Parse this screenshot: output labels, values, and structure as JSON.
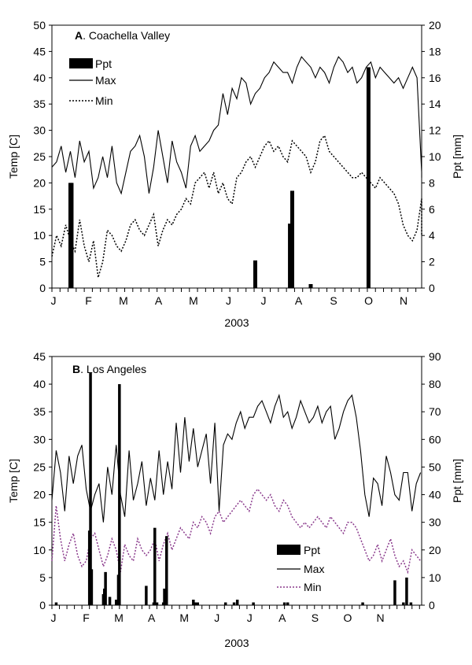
{
  "colors": {
    "max": "#000000",
    "min_a": "#000000",
    "min_b": "#8a3a8c",
    "ppt": "#000000"
  },
  "chart_data": [
    {
      "type": "line",
      "title_letter": "A",
      "title": ". Coachella Valley",
      "xlabel": "2003",
      "ylabel_left": "Temp [C]",
      "ylabel_right": "Ppt [mm]",
      "ylim_left": [
        0,
        50
      ],
      "ylim_right": [
        0,
        20
      ],
      "yticks_left": [
        0,
        5,
        10,
        15,
        20,
        25,
        30,
        35,
        40,
        45,
        50
      ],
      "yticks_right": [
        0,
        2,
        4,
        6,
        8,
        10,
        12,
        14,
        16,
        18,
        20
      ],
      "xlim_days": [
        0,
        320
      ],
      "month_labels": [
        "J",
        "F",
        "M",
        "A",
        "M",
        "J",
        "J",
        "A",
        "S",
        "O",
        "N"
      ],
      "legend": [
        {
          "name": "Ppt",
          "style": "bar"
        },
        {
          "name": "Max",
          "style": "solid"
        },
        {
          "name": "Min",
          "style": "dotted"
        }
      ],
      "legend_position": "top-left",
      "series": [
        {
          "name": "Max",
          "style": "solid",
          "day_step": 4,
          "values": [
            23,
            24,
            27,
            22,
            26,
            21,
            28,
            24,
            26,
            19,
            21,
            25,
            21,
            27,
            20,
            18,
            22,
            26,
            27,
            29,
            25,
            18,
            23,
            30,
            25,
            20,
            28,
            24,
            22,
            19,
            27,
            29,
            26,
            27,
            28,
            30,
            31,
            37,
            33,
            38,
            36,
            40,
            39,
            35,
            37,
            38,
            40,
            41,
            43,
            42,
            41,
            41,
            39,
            42,
            44,
            43,
            42,
            40,
            42,
            41,
            39,
            42,
            44,
            43,
            41,
            42,
            39,
            40,
            42,
            43,
            40,
            42,
            41,
            40,
            39,
            40,
            38,
            40,
            42,
            40,
            22,
            21
          ]
        },
        {
          "name": "Min",
          "style": "dotted",
          "day_step": 4,
          "values": [
            6,
            10,
            8,
            12,
            9,
            7,
            13,
            8,
            5,
            9,
            2,
            5,
            11,
            10,
            8,
            7,
            9,
            12,
            13,
            11,
            10,
            12,
            14,
            8,
            11,
            13,
            12,
            14,
            15,
            17,
            16,
            20,
            21,
            22,
            19,
            22,
            18,
            20,
            17,
            16,
            21,
            22,
            24,
            25,
            23,
            25,
            27,
            28,
            26,
            27,
            25,
            24,
            28,
            27,
            26,
            25,
            22,
            24,
            28,
            29,
            26,
            25,
            24,
            23,
            22,
            21,
            21,
            22,
            21,
            20,
            19,
            21,
            20,
            19,
            18,
            16,
            12,
            10,
            9,
            11,
            17,
            10
          ]
        },
        {
          "name": "Ppt",
          "style": "bar",
          "axis": "right",
          "days": [
            16,
            17,
            74,
            176,
            206,
            208,
            224,
            274
          ],
          "values": [
            8.0,
            8.0,
            0.0,
            2.1,
            4.9,
            7.4,
            0.3,
            16.8
          ]
        }
      ]
    },
    {
      "type": "line",
      "title_letter": "B",
      "title": ".  Los Angeles",
      "xlabel": "2003",
      "ylabel_left": "Temp [C]",
      "ylabel_right": "Ppt  [mm]",
      "ylim_left": [
        0,
        45
      ],
      "ylim_right": [
        0,
        90
      ],
      "yticks_left": [
        0,
        5,
        10,
        15,
        20,
        25,
        30,
        35,
        40,
        45
      ],
      "yticks_right": [
        0,
        10,
        20,
        30,
        40,
        50,
        60,
        70,
        80,
        90
      ],
      "xlim_days": [
        0,
        345
      ],
      "month_labels": [
        "J",
        "F",
        "M",
        "A",
        "M",
        "J",
        "J",
        "A",
        "S",
        "O",
        "N"
      ],
      "legend": [
        {
          "name": "Ppt",
          "style": "bar"
        },
        {
          "name": "Max",
          "style": "solid"
        },
        {
          "name": "Min",
          "style": "dotted"
        }
      ],
      "legend_position": "bottom-center",
      "series": [
        {
          "name": "Max",
          "style": "solid",
          "day_step": 4,
          "values": [
            19,
            28,
            24,
            17,
            27,
            22,
            27,
            29,
            21,
            17,
            20,
            22,
            15,
            25,
            20,
            29,
            20,
            16,
            28,
            19,
            22,
            26,
            18,
            23,
            19,
            28,
            20,
            26,
            21,
            33,
            24,
            34,
            26,
            32,
            25,
            28,
            31,
            22,
            33,
            17,
            29,
            31,
            30,
            33,
            35,
            32,
            34,
            34,
            36,
            37,
            35,
            33,
            36,
            38,
            34,
            35,
            32,
            34,
            37,
            35,
            33,
            34,
            36,
            33,
            35,
            36,
            30,
            32,
            35,
            37,
            38,
            34,
            28,
            20,
            16,
            23,
            22,
            18,
            27,
            24,
            20,
            19,
            24,
            24,
            17,
            22,
            24
          ]
        },
        {
          "name": "Min",
          "style": "dotted",
          "day_step": 4,
          "values": [
            8,
            18,
            12,
            8,
            11,
            13,
            9,
            7,
            8,
            12,
            13,
            10,
            7,
            9,
            12,
            10,
            6,
            11,
            9,
            8,
            12,
            10,
            9,
            10,
            12,
            8,
            11,
            13,
            10,
            12,
            14,
            13,
            12,
            15,
            14,
            16,
            15,
            13,
            16,
            17,
            15,
            16,
            17,
            18,
            19,
            18,
            17,
            20,
            21,
            20,
            19,
            20,
            18,
            17,
            19,
            18,
            16,
            15,
            14,
            15,
            14,
            15,
            16,
            15,
            14,
            16,
            15,
            14,
            13,
            15,
            15,
            14,
            12,
            10,
            8,
            9,
            11,
            8,
            10,
            12,
            9,
            7,
            8,
            6,
            10,
            9,
            8
          ]
        },
        {
          "name": "Ppt",
          "style": "bar",
          "axis": "right",
          "days": [
            4,
            35,
            36,
            37,
            48,
            49,
            50,
            54,
            60,
            62,
            63,
            88,
            95,
            96,
            98,
            104,
            105,
            107,
            132,
            133,
            134,
            135,
            136,
            162,
            170,
            173,
            188,
            220,
            217,
            290,
            320,
            328,
            331,
            335
          ],
          "values": [
            1,
            27,
            84,
            13,
            4,
            6,
            12,
            3,
            2,
            11,
            80,
            7,
            1,
            28,
            1,
            1,
            6,
            25,
            2,
            1,
            1,
            0.5,
            1,
            1,
            1,
            2,
            1,
            1,
            1,
            1,
            9,
            1,
            10,
            1
          ]
        }
      ]
    }
  ]
}
